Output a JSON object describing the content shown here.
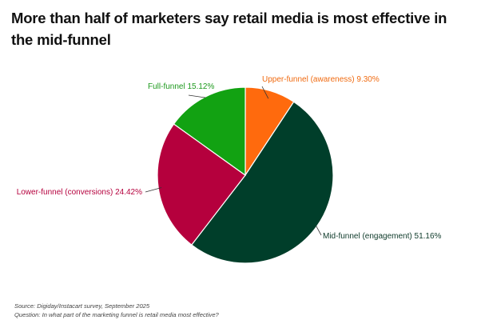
{
  "title": "More than half of marketers say retail media is most effective in the mid-funnel",
  "source": "Source: Digiday/Instacart survey, September 2025",
  "question": "Question: In what part of the marketing funnel is retail media most effective?",
  "chart_data": {
    "type": "pie",
    "start_angle_deg": 0,
    "direction": "clockwise",
    "slices": [
      {
        "label": "Upper-funnel (awareness) 9.30%",
        "value": 9.3,
        "color": "#FF6A0D"
      },
      {
        "label": "Mid-funnel (engagement) 51.16%",
        "value": 51.16,
        "color": "#003E2A"
      },
      {
        "label": "Lower-funnel (conversions) 24.42%",
        "value": 24.42,
        "color": "#B5003D"
      },
      {
        "label": "Full-funnel 15.12%",
        "value": 15.12,
        "color": "#12A212"
      }
    ]
  }
}
